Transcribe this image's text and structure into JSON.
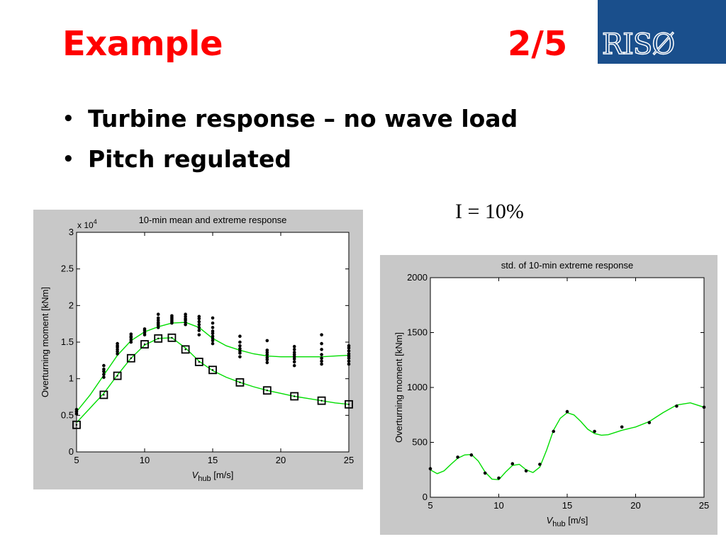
{
  "slide": {
    "title": "Example",
    "page": "2/5",
    "logo_text": "RISØ",
    "bullets": [
      "Turbine response – no wave load",
      "Pitch regulated"
    ],
    "annotation": "I = 10%"
  },
  "colors": {
    "title": "#ff0000",
    "logo_bg": "#1a4f8c",
    "fit_line": "#00dd00",
    "panel_bg": "#c8c8c8"
  },
  "chart_data": [
    {
      "type": "scatter",
      "title": "10-min mean and extreme response",
      "xlabel": "V_hub [m/s]",
      "xlabel_main": "V",
      "xlabel_sub": "hub",
      "xlabel_unit": "[m/s]",
      "ylabel": "Overturning moment [kNm]",
      "y_multiplier": "x 10^4",
      "xlim": [
        5,
        25
      ],
      "ylim": [
        0,
        3
      ],
      "xticks": [
        5,
        10,
        15,
        20,
        25
      ],
      "yticks": [
        0,
        0.5,
        1,
        1.5,
        2,
        2.5,
        3
      ],
      "ytick_labels": [
        "0",
        "0.5",
        "1",
        "1.5",
        "2",
        "2.5",
        "3"
      ],
      "grid": false,
      "series": [
        {
          "marker": "square",
          "x": [
            5,
            7,
            8,
            9,
            10,
            11,
            12,
            13,
            14,
            15,
            17,
            19,
            21,
            23,
            25
          ],
          "y": [
            0.37,
            0.78,
            1.04,
            1.28,
            1.47,
            1.55,
            1.56,
            1.4,
            1.23,
            1.12,
            0.95,
            0.84,
            0.76,
            0.7,
            0.65
          ]
        },
        {
          "marker": "dot",
          "x": [
            5,
            5,
            5,
            7,
            7,
            7,
            7,
            7,
            8,
            8,
            8,
            8,
            8,
            8,
            9,
            9,
            9,
            9,
            9,
            10,
            10,
            10,
            10,
            11,
            11,
            11,
            11,
            11,
            11,
            11,
            12,
            12,
            12,
            12,
            12,
            12,
            13,
            13,
            13,
            13,
            13,
            13,
            14,
            14,
            14,
            14,
            14,
            14,
            14,
            15,
            15,
            15,
            15,
            15,
            15,
            15,
            15,
            15,
            17,
            17,
            17,
            17,
            17,
            17,
            17,
            19,
            19,
            19,
            19,
            19,
            19,
            19,
            21,
            21,
            21,
            21,
            21,
            21,
            21,
            21,
            23,
            23,
            23,
            23,
            23,
            23,
            23,
            25,
            25,
            25,
            25,
            25,
            25,
            25,
            25
          ],
          "y": [
            0.52,
            0.55,
            0.58,
            1.02,
            1.06,
            1.1,
            1.13,
            1.18,
            1.34,
            1.37,
            1.4,
            1.43,
            1.45,
            1.48,
            1.5,
            1.53,
            1.56,
            1.58,
            1.61,
            1.6,
            1.63,
            1.66,
            1.68,
            1.7,
            1.73,
            1.75,
            1.77,
            1.8,
            1.83,
            1.88,
            1.76,
            1.78,
            1.8,
            1.82,
            1.84,
            1.86,
            1.74,
            1.77,
            1.8,
            1.82,
            1.85,
            1.88,
            1.6,
            1.66,
            1.7,
            1.74,
            1.78,
            1.82,
            1.85,
            1.48,
            1.52,
            1.55,
            1.58,
            1.62,
            1.65,
            1.7,
            1.76,
            1.83,
            1.3,
            1.35,
            1.38,
            1.41,
            1.45,
            1.5,
            1.58,
            1.22,
            1.26,
            1.29,
            1.33,
            1.36,
            1.39,
            1.52,
            1.18,
            1.23,
            1.27,
            1.3,
            1.33,
            1.36,
            1.4,
            1.44,
            1.2,
            1.24,
            1.28,
            1.33,
            1.4,
            1.48,
            1.6,
            1.2,
            1.24,
            1.28,
            1.31,
            1.34,
            1.38,
            1.42,
            1.45
          ]
        },
        {
          "marker": "none",
          "line": "fit-extreme",
          "x": [
            5,
            6,
            7,
            8,
            9,
            10,
            11,
            12,
            13,
            14,
            15,
            16,
            17,
            18,
            19,
            20,
            21,
            22,
            23,
            24,
            25
          ],
          "y": [
            0.55,
            0.78,
            1.05,
            1.32,
            1.52,
            1.64,
            1.71,
            1.76,
            1.77,
            1.7,
            1.55,
            1.45,
            1.39,
            1.34,
            1.31,
            1.3,
            1.3,
            1.3,
            1.3,
            1.31,
            1.32
          ]
        },
        {
          "marker": "none",
          "line": "fit-mean",
          "x": [
            5,
            6,
            7,
            8,
            9,
            10,
            11,
            12,
            13,
            14,
            15,
            16,
            17,
            18,
            19,
            20,
            21,
            22,
            23,
            24,
            25
          ],
          "y": [
            0.4,
            0.6,
            0.8,
            1.05,
            1.28,
            1.46,
            1.55,
            1.56,
            1.42,
            1.24,
            1.11,
            1.02,
            0.95,
            0.89,
            0.84,
            0.8,
            0.76,
            0.73,
            0.7,
            0.67,
            0.65
          ]
        }
      ]
    },
    {
      "type": "line",
      "title": "std. of 10-min extreme response",
      "xlabel": "V_hub [m/s]",
      "xlabel_main": "V",
      "xlabel_sub": "hub",
      "xlabel_unit": "[m/s]",
      "ylabel": "Overturning moment [kNm]",
      "xlim": [
        5,
        25
      ],
      "ylim": [
        0,
        2000
      ],
      "xticks": [
        5,
        10,
        15,
        20,
        25
      ],
      "yticks": [
        0,
        500,
        1000,
        1500,
        2000
      ],
      "ytick_labels": [
        "0",
        "500",
        "1000",
        "1500",
        "2000"
      ],
      "grid": false,
      "series": [
        {
          "marker": "dot",
          "x": [
            5,
            7,
            8,
            9,
            10,
            11,
            12,
            13,
            14,
            15,
            17,
            19,
            21,
            23,
            25
          ],
          "y": [
            260,
            365,
            385,
            220,
            175,
            305,
            240,
            300,
            600,
            780,
            600,
            640,
            680,
            830,
            820
          ]
        },
        {
          "marker": "none",
          "line": "fit",
          "x": [
            5,
            5.5,
            6,
            6.5,
            7,
            7.5,
            8,
            8.5,
            9,
            9.5,
            10,
            10.5,
            11,
            11.5,
            12,
            12.5,
            13,
            13.5,
            14,
            14.5,
            15,
            15.5,
            16,
            16.5,
            17,
            17.5,
            18,
            18.5,
            19,
            20,
            21,
            22,
            23,
            24,
            25
          ],
          "y": [
            250,
            215,
            240,
            300,
            355,
            385,
            390,
            330,
            230,
            165,
            160,
            230,
            290,
            300,
            250,
            225,
            275,
            430,
            610,
            720,
            770,
            750,
            690,
            620,
            580,
            565,
            570,
            590,
            610,
            640,
            690,
            770,
            840,
            860,
            820
          ]
        }
      ]
    }
  ]
}
